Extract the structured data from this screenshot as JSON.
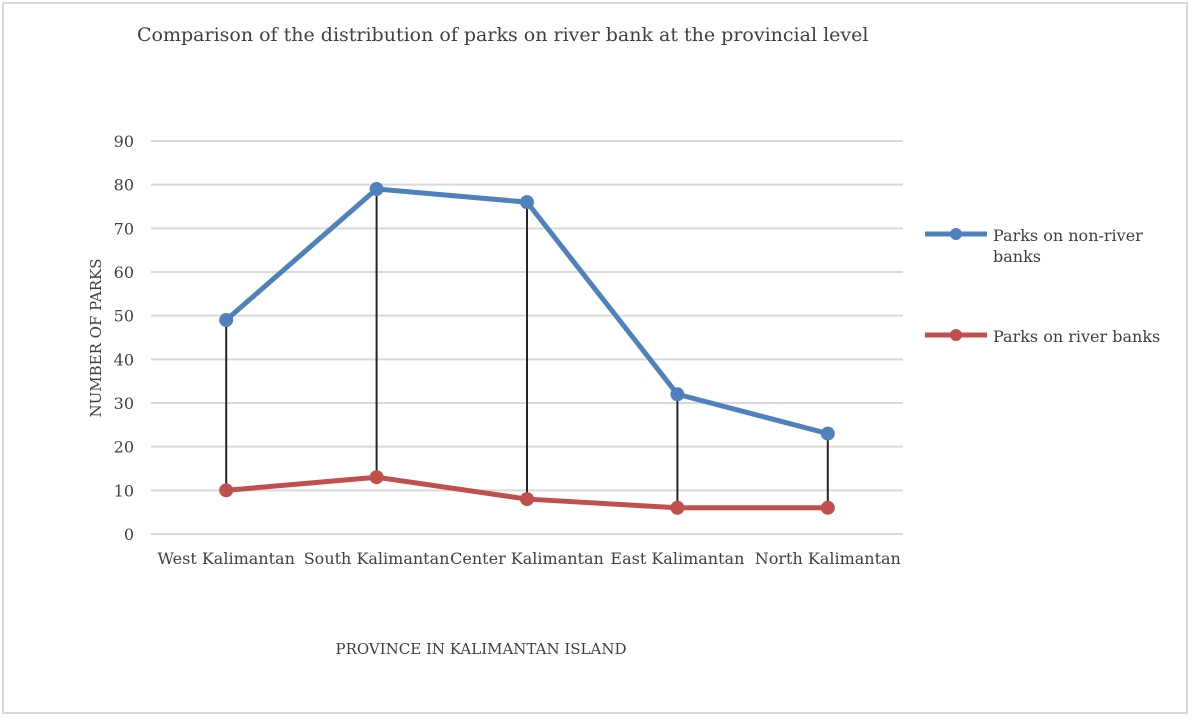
{
  "chart_data": {
    "type": "line",
    "title": "Comparison of the distribution of parks on river bank at the provincial level",
    "xlabel": "PROVINCE IN KALIMANTAN ISLAND",
    "ylabel": "NUMBER OF PARKS",
    "categories": [
      "West Kalimantan",
      "South Kalimantan",
      "Center Kalimantan",
      "East Kalimantan",
      "North Kalimantan"
    ],
    "ylim": [
      0,
      90
    ],
    "yticks": [
      0,
      10,
      20,
      30,
      40,
      50,
      60,
      70,
      80,
      90
    ],
    "grid": true,
    "legend_position": "right",
    "high_low_lines": true,
    "series": [
      {
        "name": "Parks on non-river banks",
        "values": [
          49,
          79,
          76,
          32,
          23
        ],
        "color": "#4f81bd",
        "legend_lines": [
          "Parks on non-river",
          "banks"
        ]
      },
      {
        "name": "Parks on river banks",
        "values": [
          10,
          13,
          8,
          6,
          6
        ],
        "color": "#c0504d",
        "legend_lines": [
          "Parks on river banks"
        ]
      }
    ]
  }
}
